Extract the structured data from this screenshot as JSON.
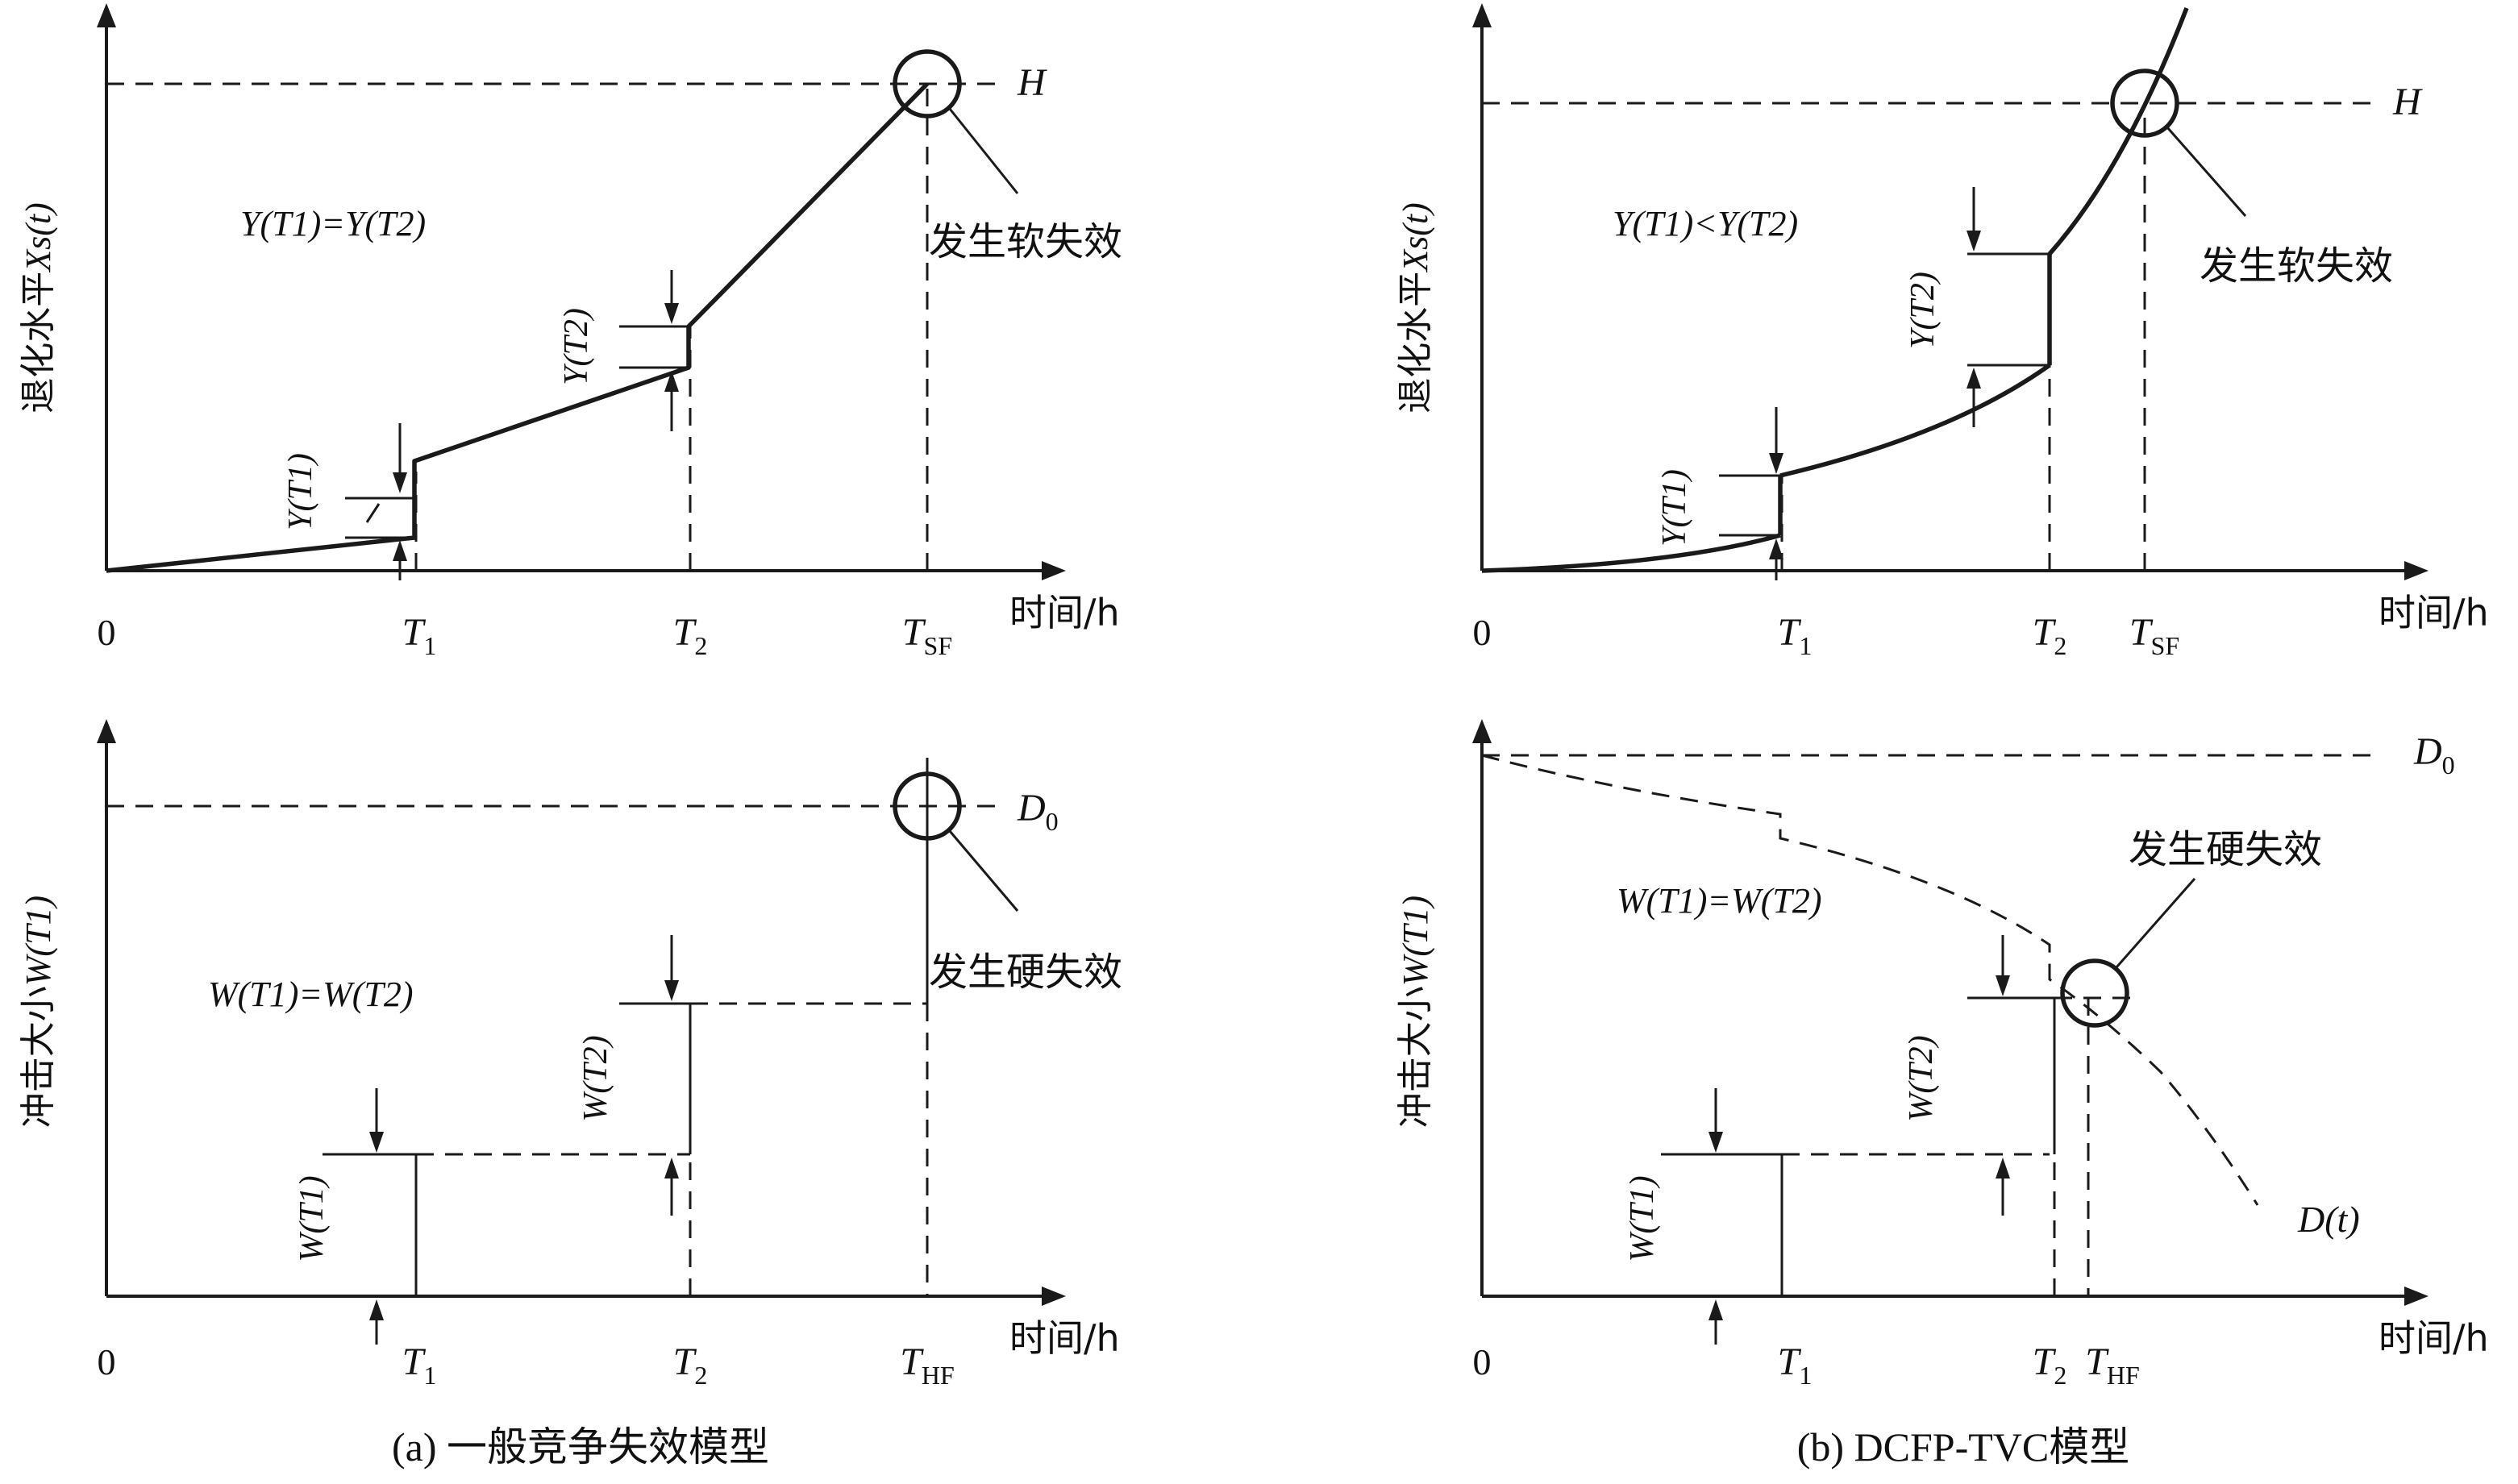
{
  "common": {
    "origin": "0",
    "x_unit": "时间/h",
    "t1_base": "T",
    "t1_sub": "1",
    "t2_base": "T",
    "t2_sub": "2"
  },
  "panel_a": {
    "caption": "(a) 一般竞争失效模型",
    "top": {
      "ylabel_prefix": "退化水平",
      "ylabel_math": "Xs(t)",
      "threshold": "H",
      "equation": "Y(T1)=Y(T2)",
      "y1_label": "Y(T1)",
      "y2_label": "Y(T2)",
      "failure_label": "发生软失效",
      "tsf_base": "T",
      "tsf_sub": "SF"
    },
    "bottom": {
      "ylabel_prefix": "冲击大小",
      "ylabel_math": "W(T1)",
      "threshold_base": "D",
      "threshold_sub": "0",
      "equation": "W(T1)=W(T2)",
      "w1_label": "W(T1)",
      "w2_label": "W(T2)",
      "failure_label": "发生硬失效",
      "thf_base": "T",
      "thf_sub": "HF"
    }
  },
  "panel_b": {
    "caption": "(b) DCFP-TVC模型",
    "top": {
      "ylabel_prefix": "退化水平",
      "ylabel_math": "Xs(t)",
      "threshold": "H",
      "equation": "Y(T1)<Y(T2)",
      "y1_label": "Y(T1)",
      "y2_label": "Y(T2)",
      "failure_label": "发生软失效",
      "tsf_base": "T",
      "tsf_sub": "SF"
    },
    "bottom": {
      "ylabel_prefix": "冲击大小",
      "ylabel_math": "W(T1)",
      "threshold_base": "D",
      "threshold_sub": "0",
      "equation": "W(T1)=W(T2)",
      "w1_label": "W(T1)",
      "w2_label": "W(T2)",
      "failure_label": "发生硬失效",
      "thf_base": "T",
      "thf_sub": "HF",
      "dt_label": "D(t)"
    }
  }
}
